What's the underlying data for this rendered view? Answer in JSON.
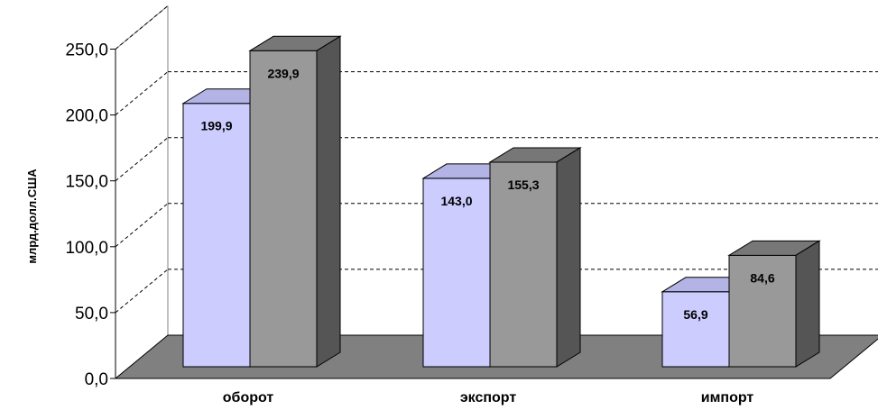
{
  "chart_data": {
    "type": "bar",
    "title": "",
    "xlabel": "",
    "ylabel": "млрд.долл.США",
    "ylim": [
      0,
      250
    ],
    "yticks": [
      "0,0",
      "50,0",
      "100,0",
      "150,0",
      "200,0",
      "250,0"
    ],
    "categories": [
      "оборот",
      "экспорт",
      "импорт"
    ],
    "series": [
      {
        "values": [
          199.9,
          143.0,
          56.9
        ],
        "labels": [
          "199,9",
          "143,0",
          "56,9"
        ],
        "color": "#ccccff"
      },
      {
        "values": [
          239.9,
          155.3,
          84.6
        ],
        "labels": [
          "239,9",
          "155,3",
          "84,6"
        ],
        "color": "#999999"
      }
    ],
    "grid": true,
    "three_d": true,
    "floor_color": "#808080",
    "legend": "none"
  }
}
